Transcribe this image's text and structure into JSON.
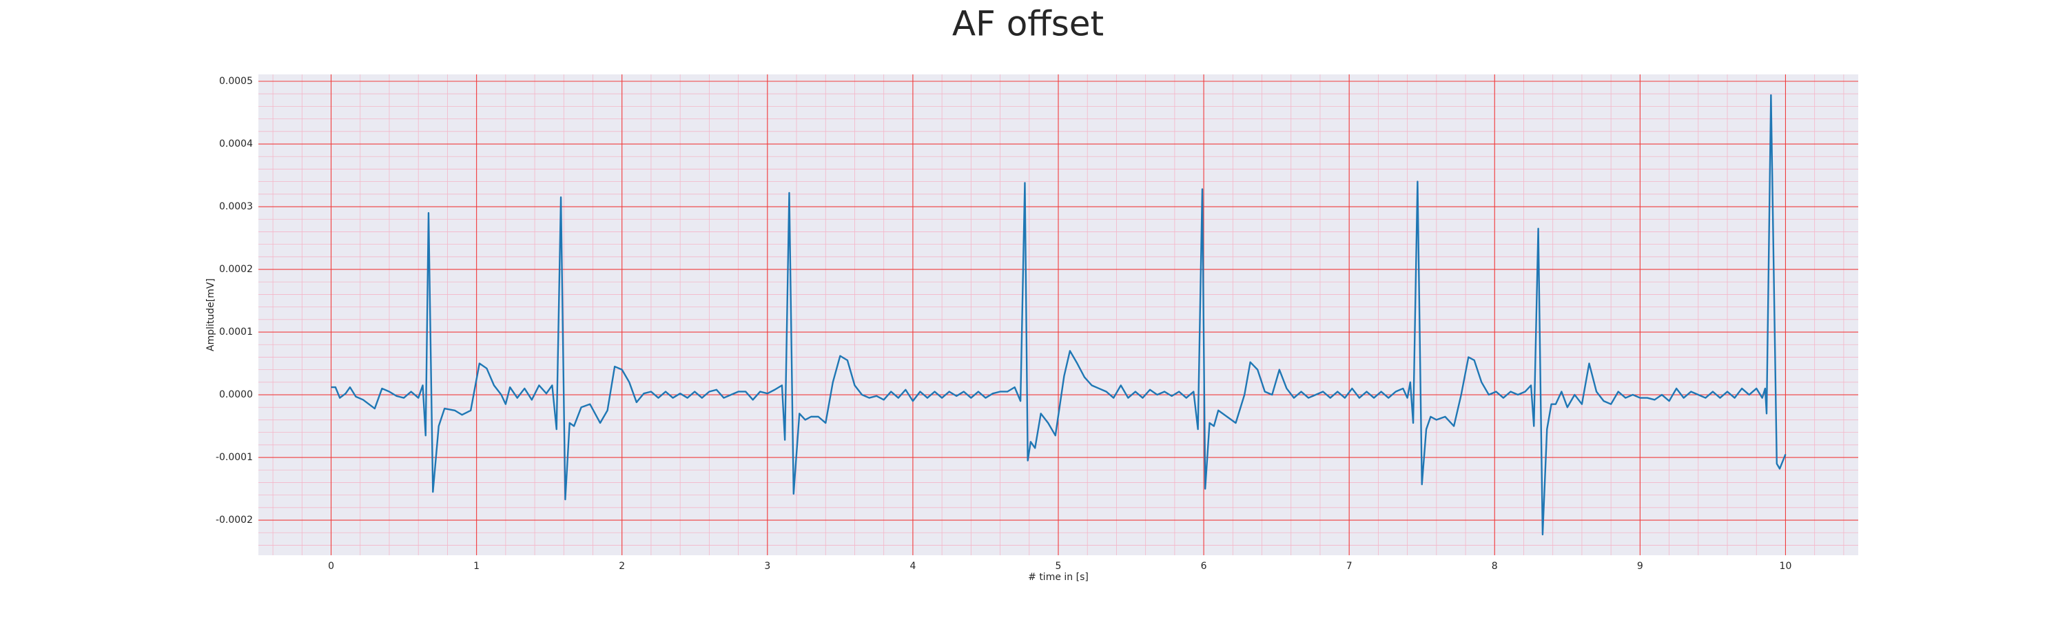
{
  "chart_data": {
    "type": "line",
    "title": "AF offset",
    "x_label": "# time in [s]",
    "y_label": "Amplitude[mV]",
    "color": "#1f77b4",
    "grid": true,
    "minor_grid": true,
    "xlim": [
      -0.5,
      10.5
    ],
    "xticks": [
      0,
      1,
      2,
      3,
      4,
      5,
      6,
      7,
      8,
      9,
      10
    ],
    "ylim": [
      -0.000256,
      0.000511
    ],
    "yticks": [
      -0.0002,
      -0.0001,
      {
        "value": 0,
        "label": "0.0000"
      },
      0.0001,
      0.0002,
      0.0003,
      0.0004,
      0.0005
    ],
    "x": [
      0.0,
      0.03,
      0.06,
      0.1,
      0.13,
      0.17,
      0.22,
      0.3,
      0.35,
      0.4,
      0.45,
      0.5,
      0.55,
      0.6,
      0.63,
      0.65,
      0.67,
      0.7,
      0.74,
      0.78,
      0.85,
      0.9,
      0.96,
      1.02,
      1.07,
      1.12,
      1.17,
      1.2,
      1.23,
      1.28,
      1.33,
      1.38,
      1.43,
      1.48,
      1.52,
      1.55,
      1.58,
      1.61,
      1.64,
      1.67,
      1.72,
      1.78,
      1.85,
      1.9,
      1.95,
      2.0,
      2.05,
      2.1,
      2.15,
      2.2,
      2.25,
      2.3,
      2.35,
      2.4,
      2.45,
      2.5,
      2.55,
      2.6,
      2.65,
      2.7,
      2.75,
      2.8,
      2.85,
      2.9,
      2.95,
      3.0,
      3.05,
      3.1,
      3.12,
      3.15,
      3.18,
      3.22,
      3.26,
      3.3,
      3.35,
      3.4,
      3.45,
      3.5,
      3.55,
      3.6,
      3.65,
      3.7,
      3.75,
      3.8,
      3.85,
      3.9,
      3.95,
      4.0,
      4.05,
      4.1,
      4.15,
      4.2,
      4.25,
      4.3,
      4.35,
      4.4,
      4.45,
      4.5,
      4.55,
      4.6,
      4.65,
      4.7,
      4.74,
      4.77,
      4.79,
      4.81,
      4.84,
      4.88,
      4.93,
      4.98,
      5.04,
      5.08,
      5.13,
      5.18,
      5.23,
      5.28,
      5.33,
      5.38,
      5.43,
      5.48,
      5.53,
      5.58,
      5.63,
      5.68,
      5.73,
      5.78,
      5.83,
      5.88,
      5.93,
      5.96,
      5.99,
      6.01,
      6.04,
      6.07,
      6.1,
      6.16,
      6.22,
      6.28,
      6.32,
      6.37,
      6.42,
      6.47,
      6.52,
      6.57,
      6.62,
      6.67,
      6.72,
      6.77,
      6.82,
      6.87,
      6.92,
      6.97,
      7.02,
      7.07,
      7.12,
      7.17,
      7.22,
      7.27,
      7.32,
      7.37,
      7.4,
      7.42,
      7.44,
      7.47,
      7.5,
      7.53,
      7.56,
      7.6,
      7.66,
      7.72,
      7.77,
      7.82,
      7.86,
      7.91,
      7.96,
      8.01,
      8.06,
      8.11,
      8.16,
      8.21,
      8.25,
      8.27,
      8.3,
      8.33,
      8.36,
      8.39,
      8.42,
      8.46,
      8.5,
      8.55,
      8.6,
      8.65,
      8.7,
      8.75,
      8.8,
      8.85,
      8.9,
      8.95,
      9.0,
      9.05,
      9.1,
      9.15,
      9.2,
      9.25,
      9.3,
      9.35,
      9.4,
      9.45,
      9.5,
      9.55,
      9.6,
      9.65,
      9.7,
      9.75,
      9.8,
      9.84,
      9.86,
      9.87,
      9.9,
      9.94,
      9.96,
      10.0
    ],
    "values": [
      1.2e-05,
      1.2e-05,
      -5e-06,
      2e-06,
      1.2e-05,
      -3e-06,
      -8e-06,
      -2.2e-05,
      1e-05,
      5e-06,
      -2e-06,
      -5e-06,
      5e-06,
      -5e-06,
      1.5e-05,
      -6.5e-05,
      0.00029,
      -0.000155,
      -5e-05,
      -2.2e-05,
      -2.5e-05,
      -3.2e-05,
      -2.5e-05,
      5e-05,
      4.2e-05,
      1.5e-05,
      0,
      -1.5e-05,
      1.2e-05,
      -5e-06,
      1e-05,
      -8e-06,
      1.5e-05,
      2e-06,
      1.5e-05,
      -5.5e-05,
      0.000315,
      -0.000167,
      -4.5e-05,
      -5e-05,
      -2e-05,
      -1.5e-05,
      -4.5e-05,
      -2.5e-05,
      4.5e-05,
      4e-05,
      2e-05,
      -1.2e-05,
      2e-06,
      5e-06,
      -5e-06,
      5e-06,
      -5e-06,
      2e-06,
      -5e-06,
      5e-06,
      -5e-06,
      5e-06,
      8e-06,
      -5e-06,
      0,
      5e-06,
      5e-06,
      -8e-06,
      5e-06,
      2e-06,
      8e-06,
      1.5e-05,
      -7.2e-05,
      0.000322,
      -0.000158,
      -3e-05,
      -4e-05,
      -3.5e-05,
      -3.5e-05,
      -4.5e-05,
      2e-05,
      6.2e-05,
      5.5e-05,
      1.5e-05,
      0,
      -5e-06,
      -2e-06,
      -8e-06,
      5e-06,
      -5e-06,
      8e-06,
      -1e-05,
      5e-06,
      -5e-06,
      5e-06,
      -5e-06,
      5e-06,
      -2e-06,
      5e-06,
      -5e-06,
      5e-06,
      -5e-06,
      2e-06,
      5e-06,
      5e-06,
      1.2e-05,
      -1e-05,
      0.000338,
      -0.000105,
      -7.5e-05,
      -8.5e-05,
      -3e-05,
      -4.5e-05,
      -6.5e-05,
      3e-05,
      7e-05,
      5e-05,
      2.8e-05,
      1.5e-05,
      1e-05,
      5e-06,
      -5e-06,
      1.5e-05,
      -5e-06,
      5e-06,
      -5e-06,
      8e-06,
      0,
      5e-06,
      -2e-06,
      5e-06,
      -5e-06,
      5e-06,
      -5.5e-05,
      0.000328,
      -0.00015,
      -4.5e-05,
      -5e-05,
      -2.5e-05,
      -3.5e-05,
      -4.5e-05,
      0,
      5.2e-05,
      4e-05,
      5e-06,
      0,
      4e-05,
      1e-05,
      -5e-06,
      5e-06,
      -5e-06,
      0,
      5e-06,
      -5e-06,
      5e-06,
      -5e-06,
      1e-05,
      -5e-06,
      5e-06,
      -5e-06,
      5e-06,
      -5e-06,
      5e-06,
      1e-05,
      -5e-06,
      2e-05,
      -4.5e-05,
      0.00034,
      -0.000143,
      -5.5e-05,
      -3.5e-05,
      -4e-05,
      -3.5e-05,
      -5e-05,
      0,
      6e-05,
      5.5e-05,
      2e-05,
      0,
      5e-06,
      -5e-06,
      5e-06,
      0,
      5e-06,
      1.5e-05,
      -5e-05,
      0.000265,
      -0.000223,
      -5.5e-05,
      -1.5e-05,
      -1.5e-05,
      5e-06,
      -2e-05,
      0,
      -1.5e-05,
      5e-05,
      5e-06,
      -1e-05,
      -1.5e-05,
      5e-06,
      -5e-06,
      0,
      -5e-06,
      -5e-06,
      -8e-06,
      0,
      -1e-05,
      1e-05,
      -5e-06,
      5e-06,
      0,
      -5e-06,
      5e-06,
      -5e-06,
      5e-06,
      -5e-06,
      1e-05,
      0,
      1e-05,
      -5e-06,
      1e-05,
      -3e-05,
      0.000478,
      -0.00011,
      -0.000118,
      -9.5e-05
    ]
  }
}
